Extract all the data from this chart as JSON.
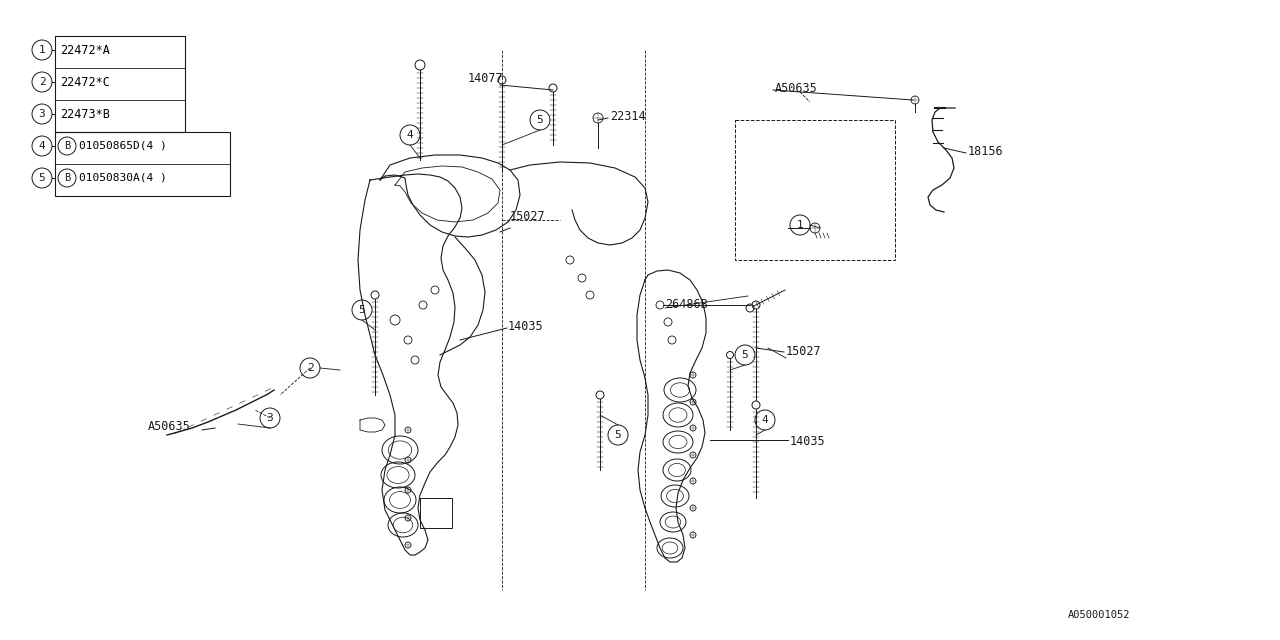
{
  "bg_color": "#ffffff",
  "line_color": "#1a1a1a",
  "legend_items": [
    {
      "num": "1",
      "text": "22472*A"
    },
    {
      "num": "2",
      "text": "22472*C"
    },
    {
      "num": "3",
      "text": "22473*B"
    },
    {
      "num": "4",
      "part": "01050865D(4 )"
    },
    {
      "num": "5",
      "part": "01050830A(4 )"
    }
  ],
  "font_size_labels": 8.5,
  "font_size_legend": 8.5,
  "font_size_bottom": 7.5,
  "figsize": [
    12.8,
    6.4
  ],
  "dpi": 100
}
